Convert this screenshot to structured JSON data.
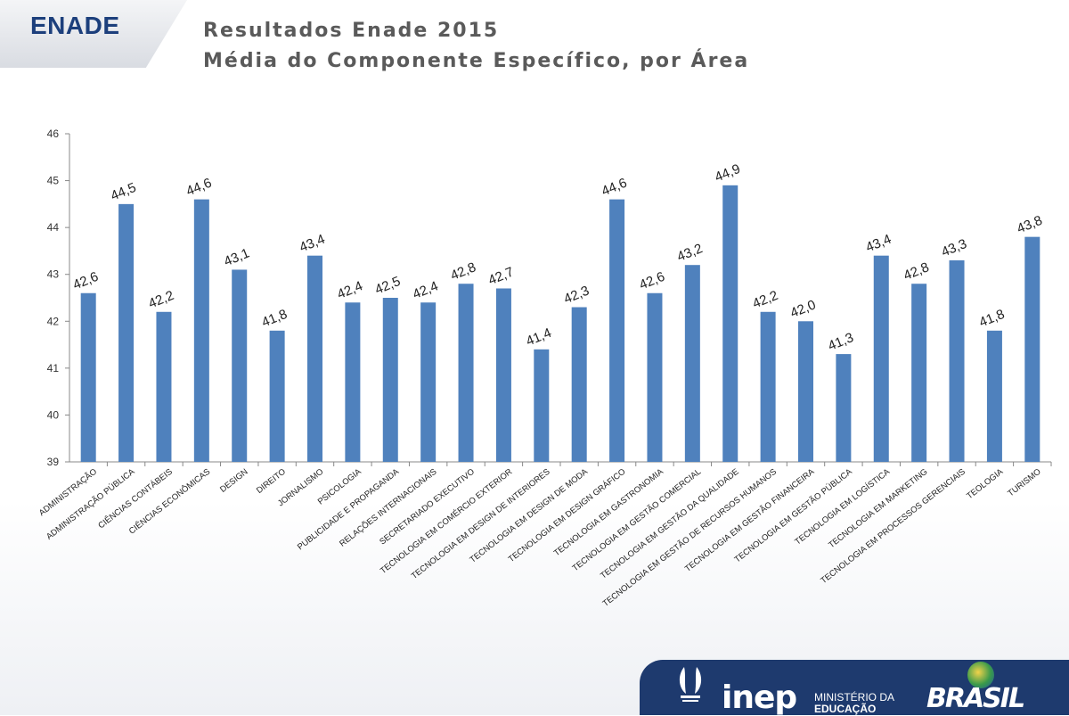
{
  "header": {
    "brand": "ENADE",
    "title_line1": "Resultados Enade 2015",
    "title_line2": "Média do Componente Específico, por Área"
  },
  "footer": {
    "inep_word": "inep",
    "ministerio_line1": "MINISTÉRIO DA",
    "ministerio_line2": "EDUCAÇÃO",
    "brasil_word": "BRASIL"
  },
  "colors": {
    "bar": "#4f81bd",
    "brand": "#1c3f7c",
    "footer": "#1e3a6e"
  },
  "chart_data": {
    "type": "bar",
    "categories": [
      "ADMINISTRAÇÃO",
      "ADMINISTRAÇÃO PÚBLICA",
      "CIÊNCIAS CONTÁBEIS",
      "CIÊNCIAS ECONÔMICAS",
      "DESIGN",
      "DIREITO",
      "JORNALISMO",
      "PSICOLOGIA",
      "PUBLICIDADE E PROPAGANDA",
      "RELAÇÕES INTERNACIONAIS",
      "SECRETARIADO EXECUTIVO",
      "TECNOLOGIA EM COMÉRCIO EXTERIOR",
      "TECNOLOGIA EM DESIGN DE INTERIORES",
      "TECNOLOGIA EM DESIGN DE MODA",
      "TECNOLOGIA EM DESIGN GRÁFICO",
      "TECNOLOGIA EM GASTRONOMIA",
      "TECNOLOGIA EM GESTÃO COMERCIAL",
      "TECNOLOGIA EM GESTÃO DA QUALIDADE",
      "TECNOLOGIA EM GESTÃO DE RECURSOS HUMANOS",
      "TECNOLOGIA EM GESTÃO FINANCEIRA",
      "TECNOLOGIA EM GESTÃO PÚBLICA",
      "TECNOLOGIA EM LOGÍSTICA",
      "TECNOLOGIA EM MARKETING",
      "TECNOLOGIA EM PROCESSOS GERENCIAIS",
      "TEOLOGIA",
      "TURISMO"
    ],
    "values": [
      42.6,
      44.5,
      42.2,
      44.6,
      43.1,
      41.8,
      43.4,
      42.4,
      42.5,
      42.4,
      42.8,
      42.7,
      41.4,
      42.3,
      44.6,
      42.6,
      43.2,
      44.9,
      42.2,
      42.0,
      41.3,
      43.4,
      42.8,
      43.3,
      41.8,
      43.8
    ],
    "data_labels": [
      "42,6",
      "44,5",
      "42,2",
      "44,6",
      "43,1",
      "41,8",
      "43,4",
      "42,4",
      "42,5",
      "42,4",
      "42,8",
      "42,7",
      "41,4",
      "42,3",
      "44,6",
      "42,6",
      "43,2",
      "44,9",
      "42,2",
      "42,0",
      "41,3",
      "43,4",
      "42,8",
      "43,3",
      "41,8",
      "43,8"
    ],
    "yticks": [
      "39",
      "40",
      "41",
      "42",
      "43",
      "44",
      "45",
      "46"
    ],
    "ylim": [
      39,
      46
    ],
    "grid": false
  }
}
